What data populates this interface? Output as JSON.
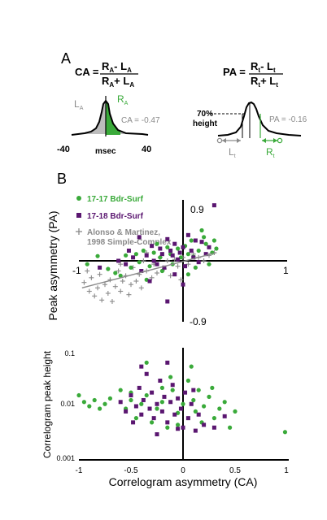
{
  "panel_a": {
    "label": "A",
    "ca_formula": {
      "lhs": "CA =",
      "num": [
        "R",
        "A",
        "- L",
        "A"
      ],
      "den": [
        "R",
        "A",
        "+ L",
        "A"
      ]
    },
    "pa_formula": {
      "lhs": "PA =",
      "num": [
        "R",
        "t",
        "- L",
        "t"
      ],
      "den": [
        "R",
        "t",
        "+ L",
        "t"
      ]
    },
    "ca_plot": {
      "l_label": "L",
      "l_sub": "A",
      "r_label": "R",
      "r_sub": "A",
      "value_text": "CA = -0.47",
      "tick_left": "-40",
      "tick_mid": "msec",
      "tick_right": "40"
    },
    "pa_plot": {
      "height_text_1": "70%",
      "height_text_2": "height",
      "value_text": "PA = -0.16",
      "l_label": "L",
      "l_sub": "t",
      "r_label": "R",
      "r_sub": "t"
    }
  },
  "panel_b": {
    "label": "B",
    "legend": [
      {
        "text": "17-17 Bdr-Surf",
        "color": "#3aaa3a",
        "marker": "circle"
      },
      {
        "text": "17-18 Bdr-Surf",
        "color": "#5a1670",
        "marker": "square"
      },
      {
        "text": "Alonso & Martinez,",
        "color": "#8a8a8a",
        "marker": "plus"
      },
      {
        "text": "1998 Simple-Complex",
        "color": "#8a8a8a",
        "marker": "none"
      }
    ]
  },
  "colors": {
    "green": "#3aaa3a",
    "purple": "#5a1670",
    "gray": "#8a8a8a"
  },
  "chart_data": [
    {
      "type": "scatter",
      "title": "",
      "xlabel": "",
      "ylabel": "Peak asymmetry (PA)",
      "xlim": [
        -1,
        1
      ],
      "ylim": [
        -0.9,
        0.9
      ],
      "tick_labels": {
        "x_left": "-1",
        "x_right": "1",
        "y_top": "0.9",
        "y_bottom": "-0.9"
      },
      "series": [
        {
          "name": "17-17 Bdr-Surf",
          "color": "#3aaa3a",
          "marker": "circle",
          "points": [
            [
              -0.92,
              -0.05
            ],
            [
              -0.82,
              0.07
            ],
            [
              -0.72,
              -0.12
            ],
            [
              -0.65,
              -0.18
            ],
            [
              -0.55,
              0.08
            ],
            [
              -0.5,
              -0.1
            ],
            [
              -0.45,
              0.1
            ],
            [
              -0.42,
              -0.02
            ],
            [
              -0.38,
              0.15
            ],
            [
              -0.32,
              -0.08
            ],
            [
              -0.28,
              0.12
            ],
            [
              -0.22,
              0.05
            ],
            [
              -0.2,
              -0.15
            ],
            [
              -0.15,
              0.2
            ],
            [
              -0.12,
              0.1
            ],
            [
              -0.1,
              -0.05
            ],
            [
              -0.05,
              0.18
            ],
            [
              -0.02,
              0.05
            ],
            [
              0.02,
              0.22
            ],
            [
              0.05,
              0.1
            ],
            [
              0.08,
              0.3
            ],
            [
              0.1,
              0.06
            ],
            [
              0.12,
              -0.1
            ],
            [
              0.15,
              0.15
            ],
            [
              0.18,
              0.45
            ],
            [
              0.2,
              0.35
            ],
            [
              0.22,
              0.25
            ],
            [
              0.25,
              -0.05
            ],
            [
              0.28,
              0.12
            ],
            [
              0.32,
              0.18
            ],
            [
              -0.6,
              -0.22
            ],
            [
              -0.35,
              -0.28
            ],
            [
              0.05,
              -0.2
            ],
            [
              0.3,
              0.3
            ],
            [
              -0.25,
              0.25
            ]
          ]
        },
        {
          "name": "17-18 Bdr-Surf",
          "color": "#5a1670",
          "marker": "square",
          "points": [
            [
              -0.8,
              -0.1
            ],
            [
              -0.62,
              0.0
            ],
            [
              -0.55,
              -0.05
            ],
            [
              -0.48,
              0.05
            ],
            [
              -0.4,
              -0.15
            ],
            [
              -0.35,
              0.08
            ],
            [
              -0.3,
              0.22
            ],
            [
              -0.28,
              0.0
            ],
            [
              -0.25,
              -0.05
            ],
            [
              -0.22,
              0.18
            ],
            [
              -0.2,
              0.1
            ],
            [
              -0.18,
              -0.1
            ],
            [
              -0.15,
              0.32
            ],
            [
              -0.12,
              0.15
            ],
            [
              -0.1,
              0.08
            ],
            [
              -0.08,
              0.25
            ],
            [
              -0.05,
              0.02
            ],
            [
              -0.03,
              0.12
            ],
            [
              0.0,
              0.2
            ],
            [
              0.02,
              -0.08
            ],
            [
              0.05,
              0.38
            ],
            [
              0.08,
              0.15
            ],
            [
              0.1,
              0.05
            ],
            [
              0.12,
              0.3
            ],
            [
              0.15,
              -0.02
            ],
            [
              0.18,
              0.28
            ],
            [
              0.22,
              0.1
            ],
            [
              0.3,
              0.82
            ],
            [
              -0.15,
              -0.6
            ],
            [
              -0.42,
              0.35
            ],
            [
              -0.32,
              -0.3
            ],
            [
              0.0,
              -0.35
            ],
            [
              -0.08,
              -0.2
            ],
            [
              0.25,
              0.2
            ],
            [
              -0.52,
              0.15
            ]
          ]
        },
        {
          "name": "Alonso & Martinez, 1998 Simple-Complex",
          "color": "#8a8a8a",
          "marker": "plus",
          "points": [
            [
              -0.95,
              -0.32
            ],
            [
              -0.9,
              -0.45
            ],
            [
              -0.88,
              -0.25
            ],
            [
              -0.85,
              -0.52
            ],
            [
              -0.82,
              -0.4
            ],
            [
              -0.8,
              -0.2
            ],
            [
              -0.78,
              -0.58
            ],
            [
              -0.75,
              -0.35
            ],
            [
              -0.72,
              -0.48
            ],
            [
              -0.7,
              -0.28
            ],
            [
              -0.68,
              -0.6
            ],
            [
              -0.65,
              -0.38
            ],
            [
              -0.62,
              -0.15
            ],
            [
              -0.6,
              -0.45
            ],
            [
              -0.58,
              -0.3
            ],
            [
              -0.55,
              -0.22
            ],
            [
              -0.52,
              -0.5
            ],
            [
              -0.5,
              -0.35
            ],
            [
              -0.48,
              -0.1
            ],
            [
              -0.45,
              -0.3
            ],
            [
              -0.42,
              -0.2
            ],
            [
              -0.4,
              -0.4
            ],
            [
              -0.38,
              0.0
            ],
            [
              -0.35,
              -0.15
            ],
            [
              -0.3,
              -0.25
            ],
            [
              -0.28,
              -0.05
            ],
            [
              -0.25,
              -0.18
            ],
            [
              -0.22,
              0.05
            ],
            [
              -0.18,
              -0.12
            ],
            [
              -0.15,
              0.0
            ],
            [
              -0.12,
              -0.22
            ],
            [
              -0.08,
              0.02
            ],
            [
              -0.05,
              -0.08
            ],
            [
              0.0,
              0.05
            ],
            [
              0.05,
              -0.05
            ],
            [
              0.1,
              0.1
            ],
            [
              0.15,
              0.05
            ],
            [
              0.2,
              0.0
            ],
            [
              0.25,
              0.08
            ],
            [
              0.3,
              0.12
            ],
            [
              -0.92,
              -0.15
            ],
            [
              -0.6,
              -0.05
            ],
            [
              -0.35,
              0.12
            ],
            [
              -0.02,
              -0.28
            ]
          ]
        }
      ],
      "trend_line": {
        "x": [
          -0.97,
          0.32
        ],
        "y": [
          -0.4,
          0.12
        ]
      }
    },
    {
      "type": "scatter",
      "title": "",
      "xlabel": "Correlogram asymmetry (CA)",
      "ylabel": "Correlogram peak height",
      "xlim": [
        -1,
        1
      ],
      "ylim": [
        0.001,
        0.1
      ],
      "y_scale": "log",
      "x_ticks": [
        "-1",
        "-0.5",
        "0",
        "0.5",
        "1"
      ],
      "y_ticks": [
        "0.1",
        "0.01",
        "0.001"
      ],
      "series": [
        {
          "name": "17-17 Bdr-Surf",
          "color": "#3aaa3a",
          "marker": "circle",
          "points": [
            [
              -1.0,
              0.016
            ],
            [
              -0.95,
              0.012
            ],
            [
              -0.9,
              0.01
            ],
            [
              -0.85,
              0.013
            ],
            [
              -0.8,
              0.009
            ],
            [
              -0.75,
              0.011
            ],
            [
              -0.7,
              0.014
            ],
            [
              -0.6,
              0.02
            ],
            [
              -0.55,
              0.009
            ],
            [
              -0.5,
              0.013
            ],
            [
              -0.45,
              0.006
            ],
            [
              -0.4,
              0.011
            ],
            [
              -0.35,
              0.016
            ],
            [
              -0.3,
              0.005
            ],
            [
              -0.25,
              0.009
            ],
            [
              -0.2,
              0.012
            ],
            [
              -0.15,
              0.004
            ],
            [
              -0.1,
              0.02
            ],
            [
              -0.05,
              0.0075
            ],
            [
              0.0,
              0.011
            ],
            [
              0.05,
              0.03
            ],
            [
              0.1,
              0.013
            ],
            [
              0.12,
              0.008
            ],
            [
              0.15,
              0.02
            ],
            [
              0.2,
              0.01
            ],
            [
              0.25,
              0.015
            ],
            [
              0.3,
              0.006
            ],
            [
              0.35,
              0.009
            ],
            [
              0.4,
              0.012
            ],
            [
              0.45,
              0.004
            ],
            [
              0.5,
              0.008
            ],
            [
              0.98,
              0.0033
            ],
            [
              -0.35,
              0.065
            ],
            [
              -0.2,
              0.022
            ],
            [
              0.08,
              0.055
            ],
            [
              -0.05,
              0.0045
            ],
            [
              0.18,
              0.005
            ],
            [
              0.28,
              0.022
            ],
            [
              -0.5,
              0.018
            ],
            [
              -0.12,
              0.035
            ]
          ]
        },
        {
          "name": "17-18 Bdr-Surf",
          "color": "#5a1670",
          "marker": "square",
          "points": [
            [
              -0.6,
              0.012
            ],
            [
              -0.55,
              0.008
            ],
            [
              -0.5,
              0.016
            ],
            [
              -0.48,
              0.005
            ],
            [
              -0.45,
              0.01
            ],
            [
              -0.42,
              0.022
            ],
            [
              -0.4,
              0.007
            ],
            [
              -0.38,
              0.013
            ],
            [
              -0.35,
              0.04
            ],
            [
              -0.32,
              0.009
            ],
            [
              -0.3,
              0.018
            ],
            [
              -0.28,
              0.006
            ],
            [
              -0.25,
              0.011
            ],
            [
              -0.22,
              0.03
            ],
            [
              -0.2,
              0.008
            ],
            [
              -0.18,
              0.015
            ],
            [
              -0.15,
              0.005
            ],
            [
              -0.12,
              0.012
            ],
            [
              -0.1,
              0.025
            ],
            [
              -0.08,
              0.007
            ],
            [
              -0.05,
              0.014
            ],
            [
              -0.02,
              0.009
            ],
            [
              0.0,
              0.004
            ],
            [
              0.02,
              0.018
            ],
            [
              0.05,
              0.006
            ],
            [
              0.08,
              0.011
            ],
            [
              0.1,
              0.02
            ],
            [
              0.15,
              0.007
            ],
            [
              0.2,
              0.0045
            ],
            [
              0.3,
              0.004
            ],
            [
              0.4,
              0.0065
            ],
            [
              -0.25,
              0.003
            ],
            [
              -0.4,
              0.055
            ],
            [
              -0.15,
              0.065
            ],
            [
              -0.05,
              0.0038
            ],
            [
              0.12,
              0.0035
            ]
          ]
        }
      ]
    }
  ]
}
